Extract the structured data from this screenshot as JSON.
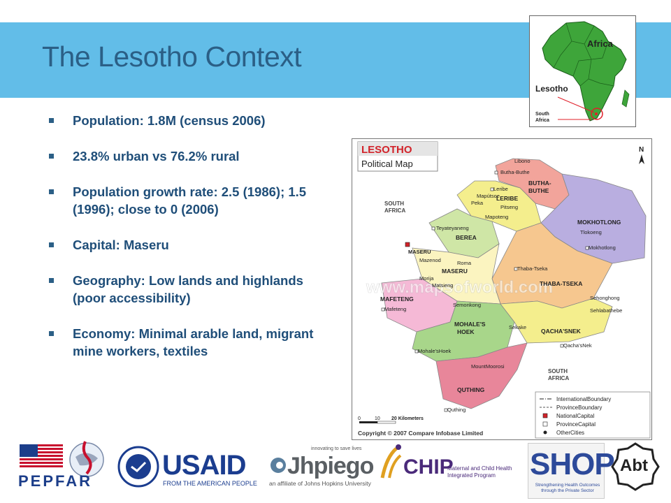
{
  "slide": {
    "title": "The Lesotho Context",
    "bullets": [
      "Population: 1.8M (census 2006)",
      "23.8% urban vs 76.2% rural",
      "Population growth rate: 2.5 (1986); 1.5 (1996); close to 0 (2006)",
      "Capital: Maseru",
      "Geography: Low lands and highlands (poor accessibility)",
      "Economy: Minimal arable land, migrant mine workers, textiles"
    ]
  },
  "inset_map": {
    "africa_label": "Africa",
    "lesotho_label": "Lesotho",
    "south_africa_line1": "South",
    "south_africa_line2": "Africa"
  },
  "political_map": {
    "title_main": "LESOTHO",
    "title_sub": "Political Map",
    "north": "N",
    "south_africa_nw_1": "SOUTH",
    "south_africa_nw_2": "AFRICA",
    "south_africa_se_1": "SOUTH",
    "south_africa_se_2": "AFRICA",
    "districts": [
      "BUTHA-",
      "BUTHE",
      "LERIBE",
      "BEREA",
      "MASERU",
      "MOKHOTLONG",
      "THABA-TSEKA",
      "MAFETENG",
      "MOHALE'S",
      "HOEK",
      "QACHA'SNEK",
      "QUTHING"
    ],
    "places": [
      "Libono",
      "Butha-Buthe",
      "Leribe",
      "Mapútsoe",
      "Peka",
      "Pitseng",
      "Mapoteng",
      "Teyateyaneng",
      "MASERU",
      "Mazenod",
      "Roma",
      "Morija",
      "Matsieng",
      "Mafeteng",
      "Semonkong",
      "Tlokoeng",
      "Mokhotlong",
      "Thaba-Tseka",
      "Sehonghong",
      "Sehlabathebe",
      "Sekake",
      "Qacha'sNek",
      "Mohale'sHoek",
      "MountMoorosi",
      "Quthing"
    ],
    "watermark": "www.mapsofworld.com",
    "legend": [
      "InternationalBoundary",
      "ProvinceBoundary",
      "NationalCapital",
      "ProvinceCapital",
      "OtherCities"
    ],
    "scale_labels": [
      "0",
      "10",
      "20 Kilometers"
    ],
    "copyright": "Copyright © 2007 Compare Infobase Limited"
  },
  "logos": {
    "pepfar": "PEPFAR",
    "usaid_main": "USAID",
    "usaid_sub": "FROM THE AMERICAN PEOPLE",
    "jhpiego_tag": "innovating to save lives",
    "jhpiego_main": "Jhpiego",
    "jhpiego_sub": "an affiliate of Johns Hopkins University",
    "mchip_main": "CHIP",
    "mchip_sub": "Maternal and Child Health Integrated Program",
    "shops_main": "SHOPS",
    "shops_sub": "Strengthening Health Outcomes through the Private Sector",
    "abt": "Abt"
  }
}
